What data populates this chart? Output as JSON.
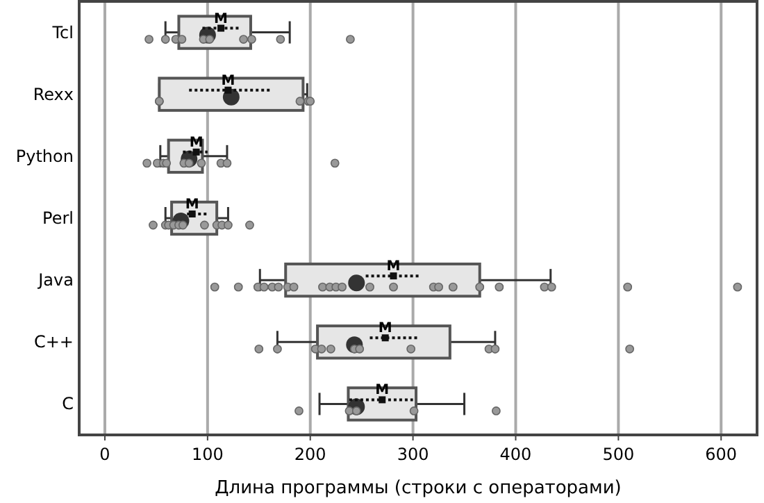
{
  "chart_data": {
    "type": "box",
    "orientation": "horizontal",
    "xlabel": "Длина программы (строки с операторами)",
    "categories": [
      "Tcl",
      "Rexx",
      "Python",
      "Perl",
      "Java",
      "C++",
      "C"
    ],
    "xlim": [
      -25,
      635
    ],
    "xticks": [
      0,
      100,
      200,
      300,
      400,
      500,
      600
    ],
    "grid": "x",
    "boxes": [
      {
        "low": 59,
        "q1": 72,
        "median": 100,
        "q3": 142,
        "high": 180
      },
      {
        "low": 53,
        "q1": 53,
        "median": 123,
        "q3": 193,
        "high": 197
      },
      {
        "low": 54,
        "q1": 62,
        "median": 82,
        "q3": 95,
        "high": 119
      },
      {
        "low": 59,
        "q1": 65,
        "median": 74,
        "q3": 109,
        "high": 120
      },
      {
        "low": 151,
        "q1": 176,
        "median": 245,
        "q3": 365,
        "high": 434
      },
      {
        "low": 168,
        "q1": 207,
        "median": 243,
        "q3": 336,
        "high": 380
      },
      {
        "low": 209,
        "q1": 237,
        "median": 245,
        "q3": 303,
        "high": 350
      }
    ],
    "color": "#e6e6e6",
    "series": [
      {
        "type": "scatter",
        "color": "#999999",
        "marker": "circle",
        "x": [
          "Tcl",
          "Tcl",
          "Tcl",
          "Tcl",
          "Tcl",
          "Tcl",
          "Tcl",
          "Tcl",
          "Tcl",
          "Tcl",
          "Rexx",
          "Rexx",
          "Rexx",
          "Rexx",
          "Rexx",
          "Python",
          "Python",
          "Python",
          "Python",
          "Python",
          "Python",
          "Python",
          "Python",
          "Python",
          "Python",
          "Perl",
          "Perl",
          "Perl",
          "Perl",
          "Perl",
          "Perl",
          "Perl",
          "Perl",
          "Perl",
          "Perl",
          "Perl",
          "Java",
          "Java",
          "Java",
          "Java",
          "Java",
          "Java",
          "Java",
          "Java",
          "Java",
          "Java",
          "Java",
          "Java",
          "Java",
          "Java",
          "Java",
          "Java",
          "Java",
          "Java",
          "Java",
          "Java",
          "Java",
          "Java",
          "Java",
          "C++",
          "C++",
          "C++",
          "C++",
          "C++",
          "C++",
          "C++",
          "C++",
          "C++",
          "C++",
          "C++",
          "C",
          "C",
          "C",
          "C",
          "C"
        ],
        "values": [
          43,
          59,
          69,
          75,
          96,
          102,
          135,
          143,
          171,
          239,
          53,
          53,
          190,
          198,
          200,
          41,
          51,
          57,
          60,
          77,
          82,
          94,
          113,
          119,
          224,
          47,
          59,
          62,
          67,
          72,
          76,
          97,
          109,
          114,
          120,
          141,
          107,
          130,
          149,
          155,
          163,
          169,
          178,
          184,
          212,
          219,
          225,
          231,
          258,
          281,
          320,
          325,
          339,
          365,
          384,
          428,
          435,
          509,
          616,
          150,
          168,
          205,
          211,
          220,
          243,
          248,
          298,
          374,
          380,
          511,
          189,
          238,
          245,
          301,
          381
        ]
      },
      {
        "type": "scatter",
        "color": "#111111",
        "marker": "square",
        "line_style": "dotted",
        "x": [
          "Tcl",
          "Rexx",
          "Python",
          "Perl",
          "Java",
          "C++",
          "C"
        ],
        "values": [
          113,
          120,
          89,
          85,
          281,
          273,
          270
        ],
        "errors": [
          [
            95,
            131
          ],
          [
            82,
            162
          ],
          [
            76,
            100
          ],
          [
            80,
            100
          ],
          [
            254,
            307
          ],
          [
            258,
            304
          ],
          [
            238,
            300
          ]
        ]
      }
    ],
    "annotations": [
      {
        "text": "M",
        "x": 113,
        "y": "Tcl"
      },
      {
        "text": "M",
        "x": 120,
        "y": "Rexx"
      },
      {
        "text": "M",
        "x": 89,
        "y": "Python"
      },
      {
        "text": "M",
        "x": 85,
        "y": "Perl"
      },
      {
        "text": "M",
        "x": 281,
        "y": "Java"
      },
      {
        "text": "M",
        "x": 273,
        "y": "C++"
      },
      {
        "text": "M",
        "x": 270,
        "y": "C"
      }
    ]
  }
}
